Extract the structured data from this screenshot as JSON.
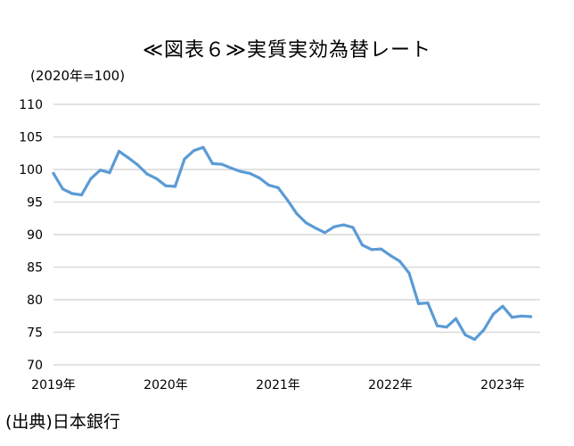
{
  "title": "≪図表６≫実質実効為替レート",
  "unit_label": "(2020年=100)",
  "source_label": "(出典)日本銀行",
  "chart_data": {
    "type": "line",
    "title": "≪図表６≫実質実効為替レート",
    "ylabel": "(2020年=100)",
    "ylim": [
      70,
      110
    ],
    "yticks": [
      70,
      75,
      80,
      85,
      90,
      95,
      100,
      105,
      110
    ],
    "xlim": [
      2019.0,
      2023.3333
    ],
    "xticks": [
      {
        "value": 2019.0,
        "label": "2019年"
      },
      {
        "value": 2020.0,
        "label": "2020年"
      },
      {
        "value": 2021.0,
        "label": "2021年"
      },
      {
        "value": 2022.0,
        "label": "2022年"
      },
      {
        "value": 2023.0,
        "label": "2023年"
      }
    ],
    "grid": "horizontal",
    "line_color": "#5b9bd5",
    "series": [
      {
        "x": [
          2019.0,
          2019.0833,
          2019.1667,
          2019.25,
          2019.3333,
          2019.4167,
          2019.5,
          2019.5833,
          2019.6667,
          2019.75,
          2019.8333,
          2019.9167,
          2020.0,
          2020.0833,
          2020.1667,
          2020.25,
          2020.3333,
          2020.4167,
          2020.5,
          2020.5833,
          2020.6667,
          2020.75,
          2020.8333,
          2020.9167,
          2021.0,
          2021.0833,
          2021.1667,
          2021.25,
          2021.3333,
          2021.4167,
          2021.5,
          2021.5833,
          2021.6667,
          2021.75,
          2021.8333,
          2021.9167,
          2022.0,
          2022.0833,
          2022.1667,
          2022.25,
          2022.3333,
          2022.4167,
          2022.5,
          2022.5833,
          2022.6667,
          2022.75,
          2022.8333,
          2022.9167,
          2023.0,
          2023.0833,
          2023.1667,
          2023.25
        ],
        "values": [
          99.4,
          97.0,
          96.3,
          96.1,
          98.6,
          99.9,
          99.5,
          102.8,
          101.8,
          100.7,
          99.3,
          98.6,
          97.5,
          97.4,
          101.6,
          102.9,
          103.4,
          100.9,
          100.8,
          100.2,
          99.7,
          99.4,
          98.7,
          97.6,
          97.2,
          95.3,
          93.2,
          91.8,
          91.0,
          90.3,
          91.2,
          91.5,
          91.1,
          88.4,
          87.7,
          87.8,
          86.8,
          85.9,
          84.1,
          79.4,
          79.5,
          76.0,
          75.8,
          77.1,
          74.6,
          73.9,
          75.4,
          77.8,
          79.0,
          77.3,
          77.5,
          77.4
        ]
      }
    ]
  }
}
